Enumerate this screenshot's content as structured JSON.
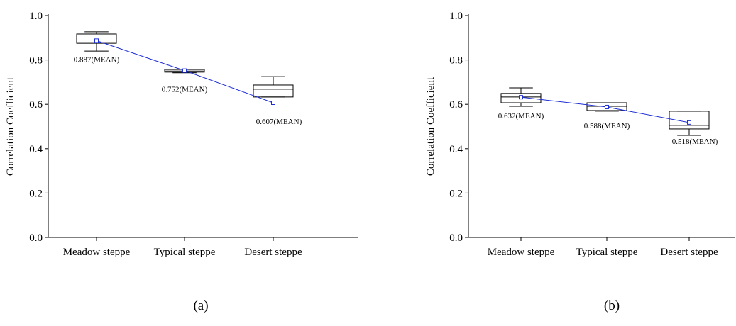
{
  "chart_data": [
    {
      "type": "box",
      "panel_label": "(a)",
      "ylabel": "Correlation Coefficient",
      "categories": [
        "Meadow steppe",
        "Typical steppe",
        "Desert steppe"
      ],
      "whisker_low": [
        0.84,
        0.742,
        0.633
      ],
      "q1": [
        0.875,
        0.745,
        0.633
      ],
      "median": [
        0.878,
        0.75,
        0.668
      ],
      "q3": [
        0.917,
        0.757,
        0.687
      ],
      "whisker_high": [
        0.927,
        0.758,
        0.725
      ],
      "values": [
        0.887,
        0.752,
        0.607
      ],
      "value_labels": [
        "0.887(MEAN)",
        "0.752(MEAN)",
        "0.607(MEAN)"
      ],
      "color": "#1f2fd6",
      "ylim": [
        0,
        1
      ],
      "yticks": [
        {
          "value": 0,
          "label": "0.0"
        },
        {
          "value": 0.2,
          "label": "0.2"
        },
        {
          "value": 0.4,
          "label": "0.4"
        },
        {
          "value": 0.6,
          "label": "0.6"
        },
        {
          "value": 0.8,
          "label": "0.8"
        },
        {
          "value": 1,
          "label": "1.0"
        }
      ]
    },
    {
      "type": "box",
      "panel_label": "(b)",
      "ylabel": "Correlation Coefficient",
      "categories": [
        "Meadow steppe",
        "Typical steppe",
        "Desert steppe"
      ],
      "whisker_low": [
        0.591,
        0.569,
        0.46
      ],
      "q1": [
        0.607,
        0.572,
        0.489
      ],
      "median": [
        0.633,
        0.591,
        0.505
      ],
      "q3": [
        0.649,
        0.607,
        0.569
      ],
      "whisker_high": [
        0.674,
        0.607,
        0.569
      ],
      "values": [
        0.632,
        0.588,
        0.518
      ],
      "value_labels": [
        "0.632(MEAN)",
        "0.588(MEAN)",
        "0.518(MEAN)"
      ],
      "color": "#1f2fd6",
      "ylim": [
        0,
        1
      ],
      "yticks": [
        {
          "value": 0,
          "label": "0.0"
        },
        {
          "value": 0.2,
          "label": "0.2"
        },
        {
          "value": 0.4,
          "label": "0.4"
        },
        {
          "value": 0.6,
          "label": "0.6"
        },
        {
          "value": 0.8,
          "label": "0.8"
        },
        {
          "value": 1,
          "label": "1.0"
        }
      ]
    }
  ]
}
